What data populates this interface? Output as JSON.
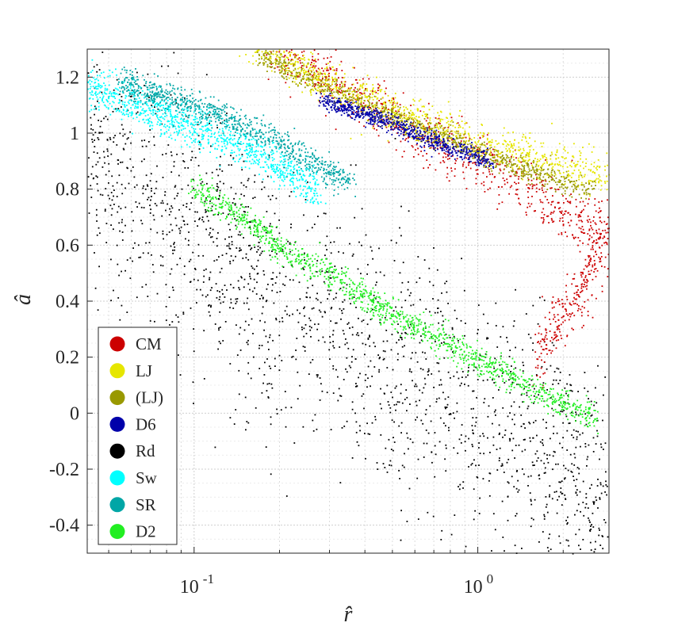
{
  "chart_data": {
    "type": "scatter",
    "xlabel": "r̂",
    "ylabel": "â",
    "x_scale": "log",
    "xlim": [
      0.042,
      2.9
    ],
    "ylim": [
      -0.5,
      1.3
    ],
    "x_ticks": [
      {
        "value": 0.1,
        "base": "10",
        "exp": "-1"
      },
      {
        "value": 1,
        "base": "10",
        "exp": "0"
      }
    ],
    "y_ticks": [
      {
        "value": 1.2,
        "label": "1.2"
      },
      {
        "value": 1.0,
        "label": "1"
      },
      {
        "value": 0.8,
        "label": "0.8"
      },
      {
        "value": 0.6,
        "label": "0.6"
      },
      {
        "value": 0.4,
        "label": "0.4"
      },
      {
        "value": 0.2,
        "label": "0.2"
      },
      {
        "value": 0.0,
        "label": "0"
      },
      {
        "value": -0.2,
        "label": "-0.2"
      },
      {
        "value": -0.4,
        "label": "-0.4"
      }
    ],
    "grid": true,
    "legend_position": "bottom-left",
    "series": [
      {
        "name": "CM",
        "color": "#cc0000",
        "points": [
          [
            0.18,
            1.32
          ],
          [
            0.25,
            1.25
          ],
          [
            0.35,
            1.15
          ],
          [
            0.5,
            1.05
          ],
          [
            0.7,
            0.96
          ],
          [
            1.0,
            0.9
          ],
          [
            1.5,
            0.8
          ],
          [
            2.0,
            0.72
          ],
          [
            2.9,
            0.65
          ],
          [
            2.3,
            0.45
          ],
          [
            1.6,
            0.2
          ]
        ],
        "spread": 0.05,
        "count": 1100
      },
      {
        "name": "LJ",
        "color": "#e6e600",
        "points": [
          [
            0.15,
            1.34
          ],
          [
            0.25,
            1.22
          ],
          [
            0.4,
            1.12
          ],
          [
            0.7,
            1.02
          ],
          [
            1.0,
            0.97
          ],
          [
            1.5,
            0.92
          ],
          [
            2.2,
            0.88
          ],
          [
            2.9,
            0.85
          ]
        ],
        "spread": 0.035,
        "count": 1100
      },
      {
        "name": "(LJ)",
        "color": "#999900",
        "points": [
          [
            0.17,
            1.28
          ],
          [
            0.3,
            1.16
          ],
          [
            0.5,
            1.06
          ],
          [
            0.8,
            0.98
          ],
          [
            1.2,
            0.9
          ],
          [
            1.8,
            0.84
          ],
          [
            2.5,
            0.8
          ]
        ],
        "spread": 0.02,
        "count": 900
      },
      {
        "name": "D6",
        "color": "#0000aa",
        "points": [
          [
            0.28,
            1.12
          ],
          [
            0.4,
            1.07
          ],
          [
            0.6,
            1.0
          ],
          [
            0.8,
            0.95
          ],
          [
            1.1,
            0.9
          ]
        ],
        "spread": 0.015,
        "count": 700
      },
      {
        "name": "Rd",
        "color": "#000000",
        "points": [
          [
            0.042,
            0.95
          ],
          [
            0.07,
            0.75
          ],
          [
            0.12,
            0.6
          ],
          [
            0.2,
            0.4
          ],
          [
            0.35,
            0.3
          ],
          [
            0.6,
            0.15
          ],
          [
            1.0,
            0.0
          ],
          [
            1.5,
            -0.1
          ],
          [
            2.0,
            -0.2
          ],
          [
            2.9,
            -0.3
          ]
        ],
        "spread": 0.22,
        "count": 1900
      },
      {
        "name": "Sw",
        "color": "#00ffff",
        "points": [
          [
            0.042,
            1.17
          ],
          [
            0.07,
            1.08
          ],
          [
            0.1,
            1.02
          ],
          [
            0.15,
            0.95
          ],
          [
            0.2,
            0.88
          ],
          [
            0.27,
            0.8
          ]
        ],
        "spread": 0.035,
        "count": 1000
      },
      {
        "name": "SR",
        "color": "#00a6a6",
        "points": [
          [
            0.055,
            1.19
          ],
          [
            0.08,
            1.13
          ],
          [
            0.12,
            1.07
          ],
          [
            0.2,
            0.97
          ],
          [
            0.28,
            0.88
          ],
          [
            0.35,
            0.82
          ]
        ],
        "spread": 0.025,
        "count": 850
      },
      {
        "name": "D2",
        "color": "#22ee22",
        "points": [
          [
            0.1,
            0.8
          ],
          [
            0.15,
            0.7
          ],
          [
            0.2,
            0.59
          ],
          [
            0.3,
            0.5
          ],
          [
            0.5,
            0.35
          ],
          [
            0.8,
            0.25
          ],
          [
            1.2,
            0.15
          ],
          [
            1.8,
            0.06
          ],
          [
            2.6,
            -0.02
          ]
        ],
        "spread": 0.025,
        "count": 1300
      }
    ]
  }
}
